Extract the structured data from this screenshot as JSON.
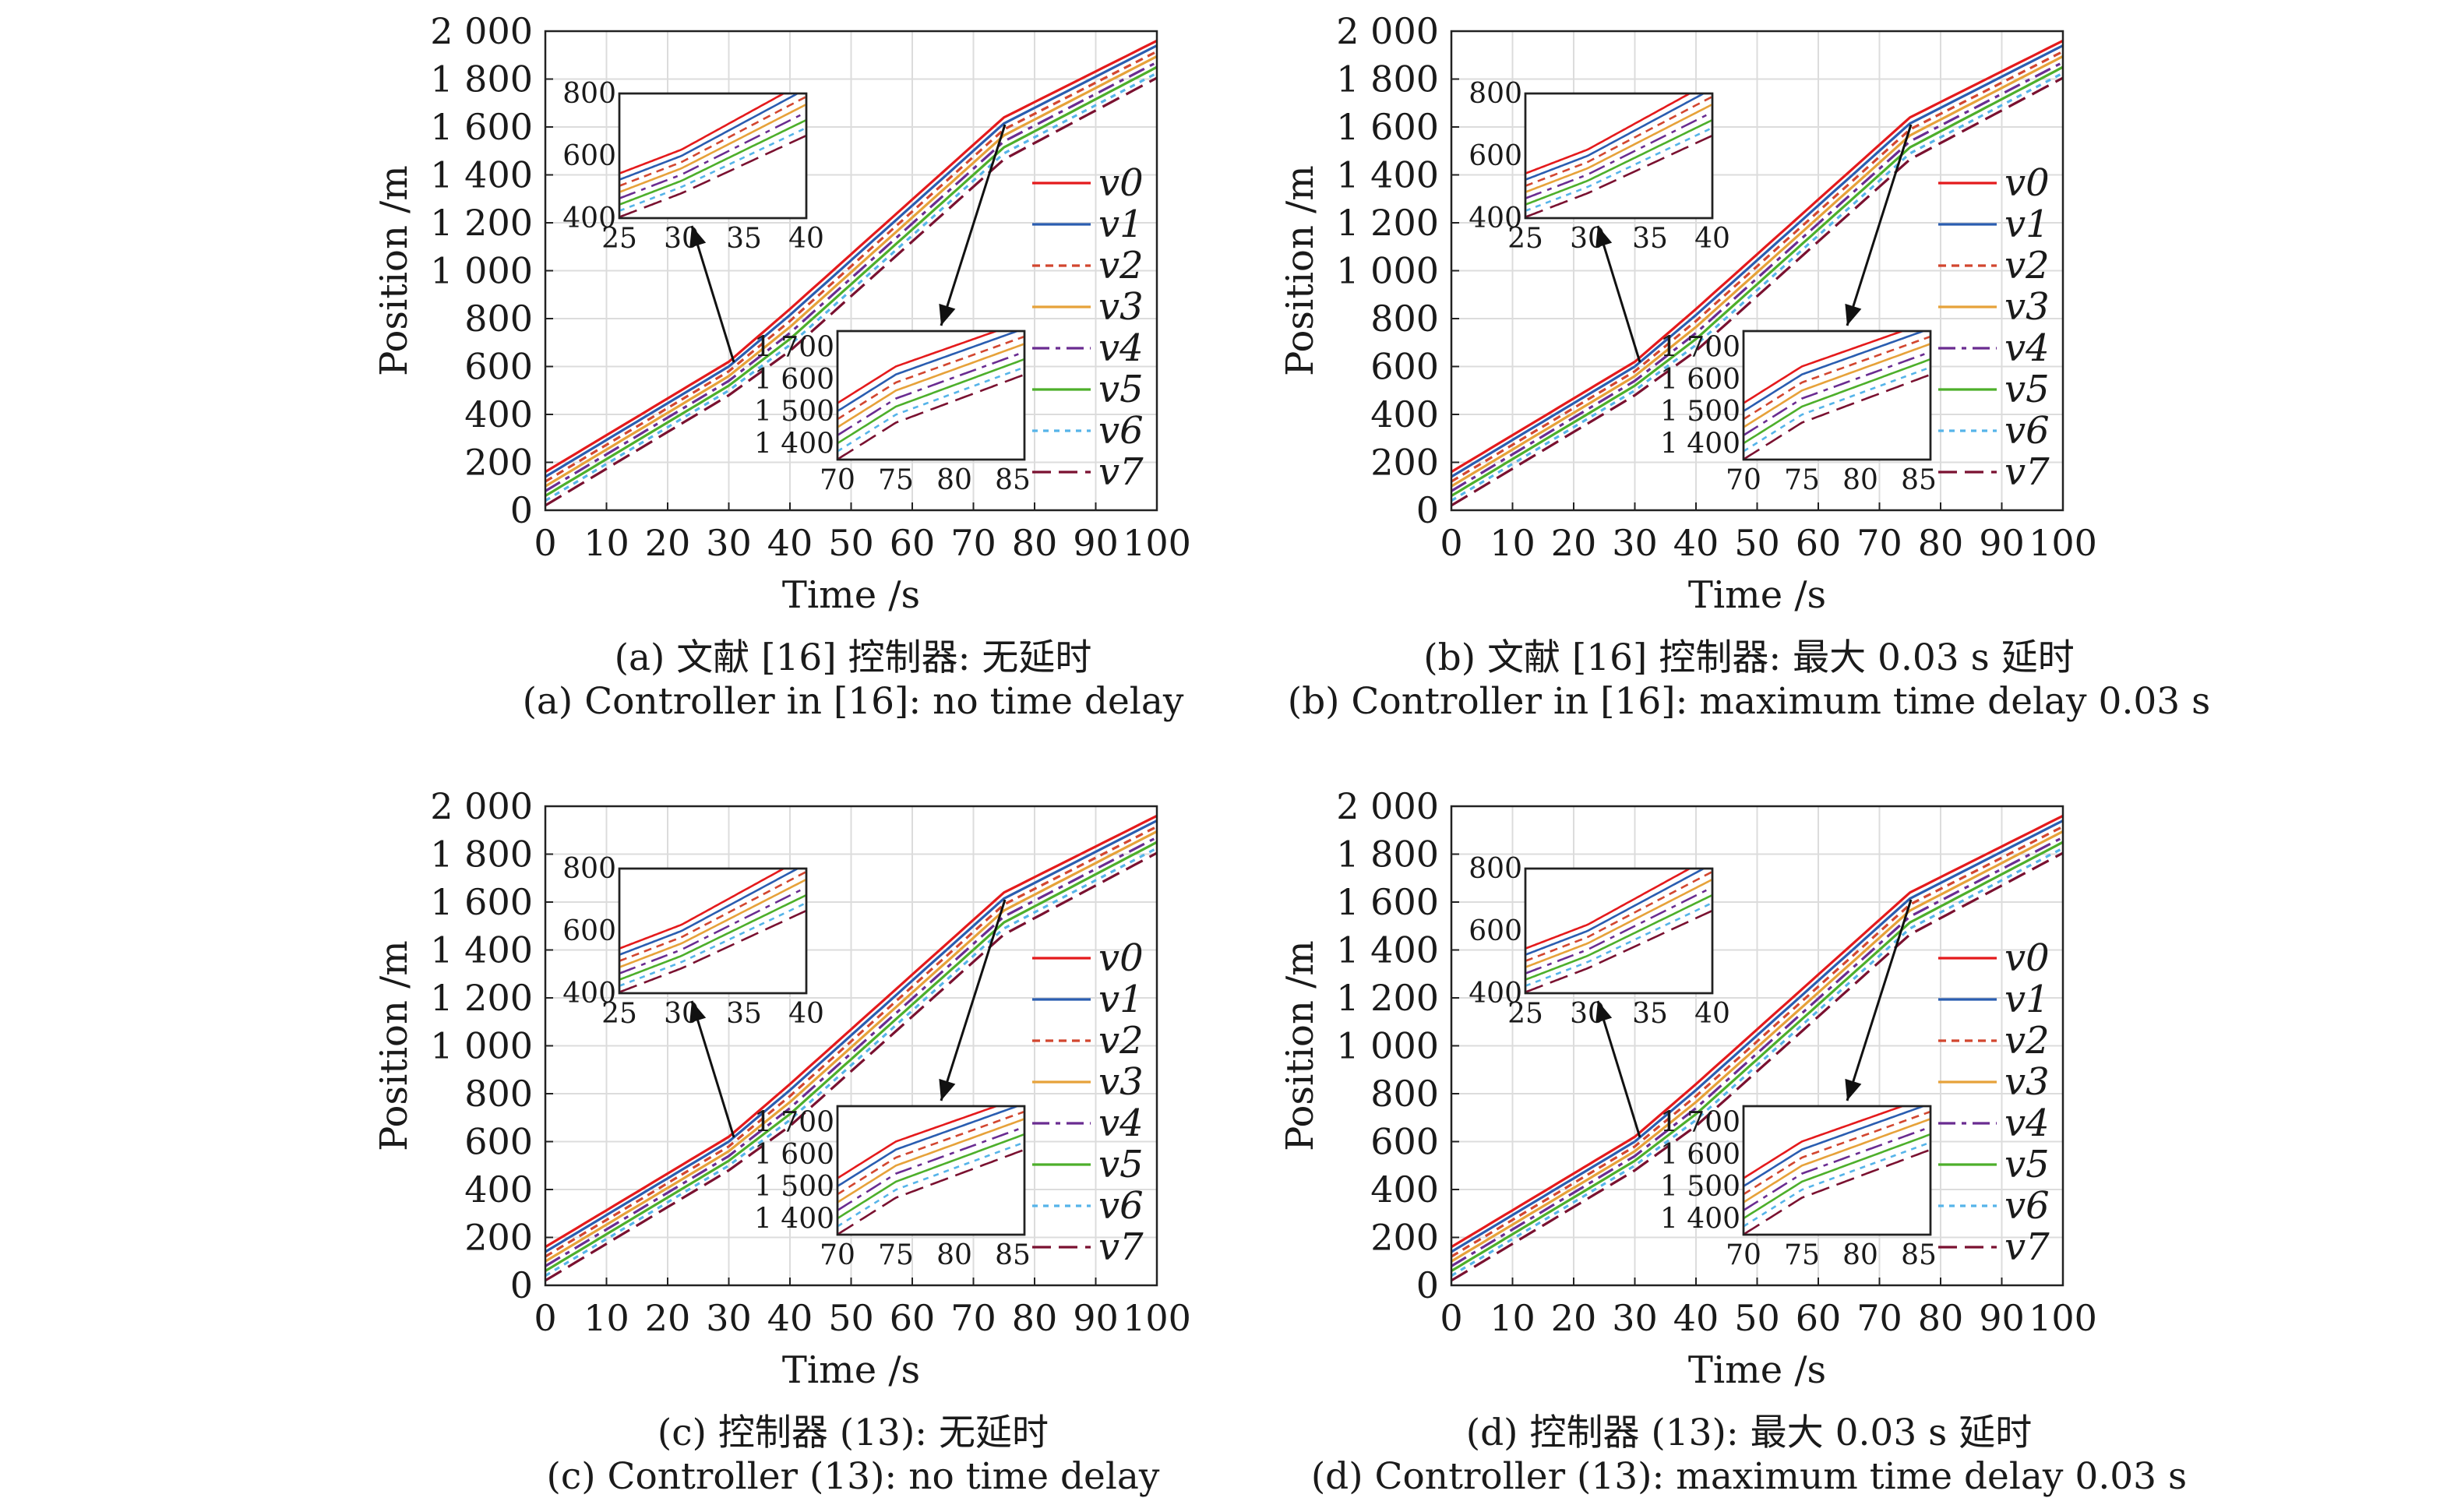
{
  "colors": [
    "#e41a1c",
    "#2a5db0",
    "#d2462f",
    "#e6a23a",
    "#6a2c91",
    "#4daf2b",
    "#56b4e9",
    "#7a1130"
  ],
  "chart_data": [
    {
      "type": "line",
      "caption_cn": "(a) 文献 [16] 控制器: 无延时",
      "caption_en": "(a) Controller in [16]: no time delay",
      "xlabel": "Time /s",
      "ylabel": "Position /m",
      "xlim": [
        0,
        100
      ],
      "ylim": [
        0,
        2000
      ],
      "x_ticks": [
        0,
        10,
        20,
        30,
        40,
        50,
        60,
        70,
        80,
        90,
        100
      ],
      "x_tick_labels": [
        "0",
        "10",
        "20",
        "30",
        "40",
        "50",
        "60",
        "70",
        "80",
        "90",
        "100"
      ],
      "y_ticks": [
        0,
        200,
        400,
        600,
        800,
        1000,
        1200,
        1400,
        1600,
        1800,
        2000
      ],
      "y_tick_labels": [
        "0",
        "200",
        "400",
        "600",
        "800",
        "1 000",
        "1 200",
        "1 400",
        "1 600",
        "1 800",
        "2 000"
      ],
      "grid": true,
      "legend_position": "right",
      "series": [
        {
          "name": "v0",
          "x": [
            0,
            30,
            40,
            75,
            100
          ],
          "y": [
            160,
            620,
            840,
            1640,
            1960
          ]
        },
        {
          "name": "v1",
          "x": [
            0,
            30,
            40,
            75,
            100
          ],
          "y": [
            140,
            600,
            815,
            1615,
            1940
          ]
        },
        {
          "name": "v2",
          "x": [
            0,
            30,
            40,
            75,
            100
          ],
          "y": [
            120,
            580,
            790,
            1590,
            1915
          ]
        },
        {
          "name": "v3",
          "x": [
            0,
            30,
            40,
            75,
            100
          ],
          "y": [
            100,
            560,
            765,
            1565,
            1895
          ]
        },
        {
          "name": "v4",
          "x": [
            0,
            30,
            40,
            75,
            100
          ],
          "y": [
            80,
            540,
            740,
            1540,
            1870
          ]
        },
        {
          "name": "v5",
          "x": [
            0,
            30,
            40,
            75,
            100
          ],
          "y": [
            60,
            520,
            715,
            1515,
            1850
          ]
        },
        {
          "name": "v6",
          "x": [
            0,
            30,
            40,
            75,
            100
          ],
          "y": [
            40,
            500,
            690,
            1490,
            1825
          ]
        },
        {
          "name": "v7",
          "x": [
            0,
            30,
            40,
            75,
            100
          ],
          "y": [
            20,
            480,
            665,
            1465,
            1805
          ]
        }
      ],
      "insets": [
        {
          "xlim": [
            25,
            40
          ],
          "ylim": [
            400,
            800
          ],
          "x_ticks": [
            25,
            30,
            35,
            40
          ],
          "x_tick_labels": [
            "25",
            "30",
            "35",
            "40"
          ],
          "y_ticks": [
            400,
            600,
            800
          ],
          "y_tick_labels": [
            "400",
            "600",
            "800"
          ]
        },
        {
          "xlim": [
            70,
            86
          ],
          "ylim": [
            1350,
            1750
          ],
          "x_ticks": [
            70,
            75,
            80,
            85
          ],
          "x_tick_labels": [
            "70",
            "75",
            "80",
            "85"
          ],
          "y_ticks": [
            1400,
            1500,
            1600,
            1700
          ],
          "y_tick_labels": [
            "1 400",
            "1 500",
            "1 600",
            "1 700"
          ]
        }
      ]
    },
    {
      "type": "line",
      "caption_cn": "(b) 文献 [16] 控制器: 最大 0.03 s 延时",
      "caption_en": "(b) Controller in [16]: maximum time delay 0.03 s",
      "xlabel": "Time /s",
      "ylabel": "Position /m",
      "xlim": [
        0,
        100
      ],
      "ylim": [
        0,
        2000
      ],
      "x_ticks": [
        0,
        10,
        20,
        30,
        40,
        50,
        60,
        70,
        80,
        90,
        100
      ],
      "x_tick_labels": [
        "0",
        "10",
        "20",
        "30",
        "40",
        "50",
        "60",
        "70",
        "80",
        "90",
        "100"
      ],
      "y_ticks": [
        0,
        200,
        400,
        600,
        800,
        1000,
        1200,
        1400,
        1600,
        1800,
        2000
      ],
      "y_tick_labels": [
        "0",
        "200",
        "400",
        "600",
        "800",
        "1 000",
        "1 200",
        "1 400",
        "1 600",
        "1 800",
        "2 000"
      ],
      "grid": true,
      "legend_position": "right",
      "series": [
        {
          "name": "v0",
          "x": [
            0,
            30,
            40,
            75,
            100
          ],
          "y": [
            160,
            620,
            840,
            1640,
            1960
          ]
        },
        {
          "name": "v1",
          "x": [
            0,
            30,
            40,
            75,
            100
          ],
          "y": [
            140,
            600,
            815,
            1615,
            1940
          ]
        },
        {
          "name": "v2",
          "x": [
            0,
            30,
            40,
            75,
            100
          ],
          "y": [
            120,
            580,
            790,
            1590,
            1915
          ]
        },
        {
          "name": "v3",
          "x": [
            0,
            30,
            40,
            75,
            100
          ],
          "y": [
            100,
            560,
            765,
            1565,
            1895
          ]
        },
        {
          "name": "v4",
          "x": [
            0,
            30,
            40,
            75,
            100
          ],
          "y": [
            80,
            540,
            740,
            1540,
            1870
          ]
        },
        {
          "name": "v5",
          "x": [
            0,
            30,
            40,
            75,
            100
          ],
          "y": [
            60,
            520,
            715,
            1515,
            1850
          ]
        },
        {
          "name": "v6",
          "x": [
            0,
            30,
            40,
            75,
            100
          ],
          "y": [
            40,
            500,
            690,
            1490,
            1825
          ]
        },
        {
          "name": "v7",
          "x": [
            0,
            30,
            40,
            75,
            100
          ],
          "y": [
            20,
            480,
            665,
            1465,
            1805
          ]
        }
      ],
      "insets": [
        {
          "xlim": [
            25,
            40
          ],
          "ylim": [
            400,
            800
          ],
          "x_ticks": [
            25,
            30,
            35,
            40
          ],
          "x_tick_labels": [
            "25",
            "30",
            "35",
            "40"
          ],
          "y_ticks": [
            400,
            600,
            800
          ],
          "y_tick_labels": [
            "400",
            "600",
            "800"
          ]
        },
        {
          "xlim": [
            70,
            86
          ],
          "ylim": [
            1350,
            1750
          ],
          "x_ticks": [
            70,
            75,
            80,
            85
          ],
          "x_tick_labels": [
            "70",
            "75",
            "80",
            "85"
          ],
          "y_ticks": [
            1400,
            1500,
            1600,
            1700
          ],
          "y_tick_labels": [
            "1 400",
            "1 500",
            "1 600",
            "1 700"
          ]
        }
      ]
    },
    {
      "type": "line",
      "caption_cn": "(c) 控制器 (13): 无延时",
      "caption_en": "(c) Controller (13): no time delay",
      "xlabel": "Time /s",
      "ylabel": "Position /m",
      "xlim": [
        0,
        100
      ],
      "ylim": [
        0,
        2000
      ],
      "x_ticks": [
        0,
        10,
        20,
        30,
        40,
        50,
        60,
        70,
        80,
        90,
        100
      ],
      "x_tick_labels": [
        "0",
        "10",
        "20",
        "30",
        "40",
        "50",
        "60",
        "70",
        "80",
        "90",
        "100"
      ],
      "y_ticks": [
        0,
        200,
        400,
        600,
        800,
        1000,
        1200,
        1400,
        1600,
        1800,
        2000
      ],
      "y_tick_labels": [
        "0",
        "200",
        "400",
        "600",
        "800",
        "1 000",
        "1 200",
        "1 400",
        "1 600",
        "1 800",
        "2 000"
      ],
      "grid": true,
      "legend_position": "right",
      "series": [
        {
          "name": "v0",
          "x": [
            0,
            30,
            40,
            75,
            100
          ],
          "y": [
            160,
            620,
            840,
            1640,
            1960
          ]
        },
        {
          "name": "v1",
          "x": [
            0,
            30,
            40,
            75,
            100
          ],
          "y": [
            140,
            600,
            815,
            1615,
            1940
          ]
        },
        {
          "name": "v2",
          "x": [
            0,
            30,
            40,
            75,
            100
          ],
          "y": [
            120,
            580,
            790,
            1590,
            1915
          ]
        },
        {
          "name": "v3",
          "x": [
            0,
            30,
            40,
            75,
            100
          ],
          "y": [
            100,
            560,
            765,
            1565,
            1895
          ]
        },
        {
          "name": "v4",
          "x": [
            0,
            30,
            40,
            75,
            100
          ],
          "y": [
            80,
            540,
            740,
            1540,
            1870
          ]
        },
        {
          "name": "v5",
          "x": [
            0,
            30,
            40,
            75,
            100
          ],
          "y": [
            60,
            520,
            715,
            1515,
            1850
          ]
        },
        {
          "name": "v6",
          "x": [
            0,
            30,
            40,
            75,
            100
          ],
          "y": [
            40,
            500,
            690,
            1490,
            1825
          ]
        },
        {
          "name": "v7",
          "x": [
            0,
            30,
            40,
            75,
            100
          ],
          "y": [
            20,
            480,
            665,
            1465,
            1805
          ]
        }
      ],
      "insets": [
        {
          "xlim": [
            25,
            40
          ],
          "ylim": [
            400,
            800
          ],
          "x_ticks": [
            25,
            30,
            35,
            40
          ],
          "x_tick_labels": [
            "25",
            "30",
            "35",
            "40"
          ],
          "y_ticks": [
            400,
            600,
            800
          ],
          "y_tick_labels": [
            "400",
            "600",
            "800"
          ]
        },
        {
          "xlim": [
            70,
            86
          ],
          "ylim": [
            1350,
            1750
          ],
          "x_ticks": [
            70,
            75,
            80,
            85
          ],
          "x_tick_labels": [
            "70",
            "75",
            "80",
            "85"
          ],
          "y_ticks": [
            1400,
            1500,
            1600,
            1700
          ],
          "y_tick_labels": [
            "1 400",
            "1 500",
            "1 600",
            "1 700"
          ]
        }
      ]
    },
    {
      "type": "line",
      "caption_cn": "(d) 控制器 (13): 最大 0.03 s 延时",
      "caption_en": "(d) Controller (13): maximum time delay 0.03 s",
      "xlabel": "Time /s",
      "ylabel": "Position /m",
      "xlim": [
        0,
        100
      ],
      "ylim": [
        0,
        2000
      ],
      "x_ticks": [
        0,
        10,
        20,
        30,
        40,
        50,
        60,
        70,
        80,
        90,
        100
      ],
      "x_tick_labels": [
        "0",
        "10",
        "20",
        "30",
        "40",
        "50",
        "60",
        "70",
        "80",
        "90",
        "100"
      ],
      "y_ticks": [
        0,
        200,
        400,
        600,
        800,
        1000,
        1200,
        1400,
        1600,
        1800,
        2000
      ],
      "y_tick_labels": [
        "0",
        "200",
        "400",
        "600",
        "800",
        "1 000",
        "1 200",
        "1 400",
        "1 600",
        "1 800",
        "2 000"
      ],
      "grid": true,
      "legend_position": "right",
      "series": [
        {
          "name": "v0",
          "x": [
            0,
            30,
            40,
            75,
            100
          ],
          "y": [
            160,
            620,
            840,
            1640,
            1960
          ]
        },
        {
          "name": "v1",
          "x": [
            0,
            30,
            40,
            75,
            100
          ],
          "y": [
            140,
            600,
            815,
            1615,
            1940
          ]
        },
        {
          "name": "v2",
          "x": [
            0,
            30,
            40,
            75,
            100
          ],
          "y": [
            120,
            580,
            790,
            1590,
            1915
          ]
        },
        {
          "name": "v3",
          "x": [
            0,
            30,
            40,
            75,
            100
          ],
          "y": [
            100,
            560,
            765,
            1565,
            1895
          ]
        },
        {
          "name": "v4",
          "x": [
            0,
            30,
            40,
            75,
            100
          ],
          "y": [
            80,
            540,
            740,
            1540,
            1870
          ]
        },
        {
          "name": "v5",
          "x": [
            0,
            30,
            40,
            75,
            100
          ],
          "y": [
            60,
            520,
            715,
            1515,
            1850
          ]
        },
        {
          "name": "v6",
          "x": [
            0,
            30,
            40,
            75,
            100
          ],
          "y": [
            40,
            500,
            690,
            1490,
            1825
          ]
        },
        {
          "name": "v7",
          "x": [
            0,
            30,
            40,
            75,
            100
          ],
          "y": [
            20,
            480,
            665,
            1465,
            1805
          ]
        }
      ],
      "insets": [
        {
          "xlim": [
            25,
            40
          ],
          "ylim": [
            400,
            800
          ],
          "x_ticks": [
            25,
            30,
            35,
            40
          ],
          "x_tick_labels": [
            "25",
            "30",
            "35",
            "40"
          ],
          "y_ticks": [
            400,
            600,
            800
          ],
          "y_tick_labels": [
            "400",
            "600",
            "800"
          ]
        },
        {
          "xlim": [
            70,
            86
          ],
          "ylim": [
            1350,
            1750
          ],
          "x_ticks": [
            70,
            75,
            80,
            85
          ],
          "x_tick_labels": [
            "70",
            "75",
            "80",
            "85"
          ],
          "y_ticks": [
            1400,
            1500,
            1600,
            1700
          ],
          "y_tick_labels": [
            "1 400",
            "1 500",
            "1 600",
            "1 700"
          ]
        }
      ]
    }
  ]
}
